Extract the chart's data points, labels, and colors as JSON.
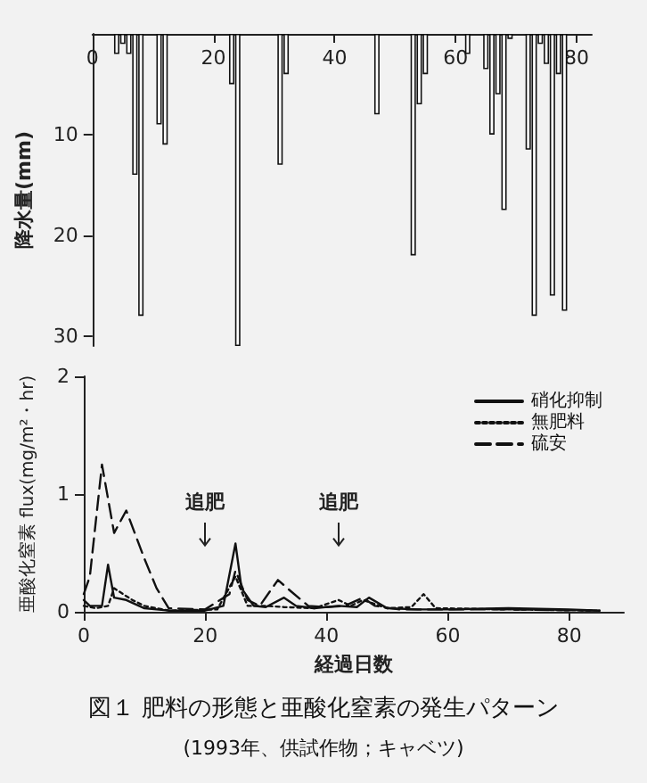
{
  "chart_data": [
    {
      "type": "bar",
      "ylabel": "降水量(mm)",
      "x": [
        4,
        5,
        6,
        7,
        8,
        11,
        12,
        23,
        24,
        31,
        32,
        47,
        53,
        54,
        55,
        62,
        65,
        66,
        67,
        68,
        69,
        72,
        73,
        74,
        75,
        76,
        77,
        78
      ],
      "series": [
        {
          "color": "#ffffff",
          "values": [
            2,
            1,
            2,
            14,
            28,
            9,
            11,
            5,
            31,
            13,
            4,
            8,
            22,
            7,
            4,
            2,
            3.5,
            10,
            6,
            17.5,
            0.5,
            11.5,
            28,
            1,
            3,
            26,
            4,
            27.5
          ]
        }
      ],
      "xlim": [
        0,
        82.5
      ],
      "xticks": [
        0,
        20,
        40,
        60,
        80
      ],
      "ylim": [
        31,
        0
      ],
      "yticks": [
        10,
        20,
        30
      ],
      "grid": false,
      "legend": false
    },
    {
      "type": "line",
      "title": "図１ 肥料の形態と亜酸化窒素の発生パターン",
      "subtitle": "(1993年、供試作物；キャベツ)",
      "xlabel": "経過日数",
      "ylabel": "亜酸化窒素 flux(mg/m²・hr)",
      "series": [
        {
          "name": "硝化抑制",
          "color": "#111111",
          "line_style": "solid",
          "x": [
            0,
            1,
            3,
            4,
            5,
            7,
            10,
            14,
            20,
            23,
            25,
            26,
            28,
            30,
            33,
            35,
            38,
            42,
            45,
            47,
            50,
            55,
            60,
            70,
            80,
            85
          ],
          "values": [
            0.1,
            0.05,
            0.05,
            0.4,
            0.12,
            0.1,
            0.03,
            0.01,
            0.01,
            0.05,
            0.58,
            0.2,
            0.05,
            0.04,
            0.12,
            0.05,
            0.03,
            0.05,
            0.04,
            0.12,
            0.03,
            0.02,
            0.02,
            0.03,
            0.02,
            0.01
          ]
        },
        {
          "name": "無肥料",
          "color": "#111111",
          "line_style": "dotted",
          "x": [
            0,
            2,
            4,
            5,
            8,
            10,
            14,
            22,
            25,
            27,
            30,
            33,
            38,
            42,
            44,
            46,
            50,
            54,
            56,
            58,
            70,
            85
          ],
          "values": [
            0.05,
            0.03,
            0.05,
            0.2,
            0.1,
            0.05,
            0.01,
            0.02,
            0.3,
            0.05,
            0.05,
            0.04,
            0.03,
            0.1,
            0.05,
            0.1,
            0.03,
            0.04,
            0.15,
            0.03,
            0.02,
            0.01
          ]
        },
        {
          "name": "硫安",
          "color": "#111111",
          "line_style": "dashed",
          "x": [
            0,
            1,
            3,
            5,
            7,
            10,
            12,
            14,
            20,
            24,
            25,
            27,
            29,
            32,
            34,
            37,
            40,
            43,
            46,
            48,
            52,
            56,
            70,
            85
          ],
          "values": [
            0.15,
            0.3,
            1.25,
            0.67,
            0.86,
            0.45,
            0.2,
            0.03,
            0.02,
            0.15,
            0.35,
            0.1,
            0.05,
            0.27,
            0.18,
            0.05,
            0.04,
            0.05,
            0.12,
            0.05,
            0.02,
            0.02,
            0.02,
            0.01
          ]
        }
      ],
      "annotations": [
        {
          "text": "追肥",
          "x": 20
        },
        {
          "text": "追肥",
          "x": 42
        }
      ],
      "xlim": [
        0,
        89
      ],
      "xticks": [
        0,
        20,
        40,
        60,
        80
      ],
      "ylim": [
        0,
        2
      ],
      "yticks": [
        0,
        1,
        2
      ],
      "marker": "none",
      "grid": false,
      "legend": "top right"
    }
  ]
}
